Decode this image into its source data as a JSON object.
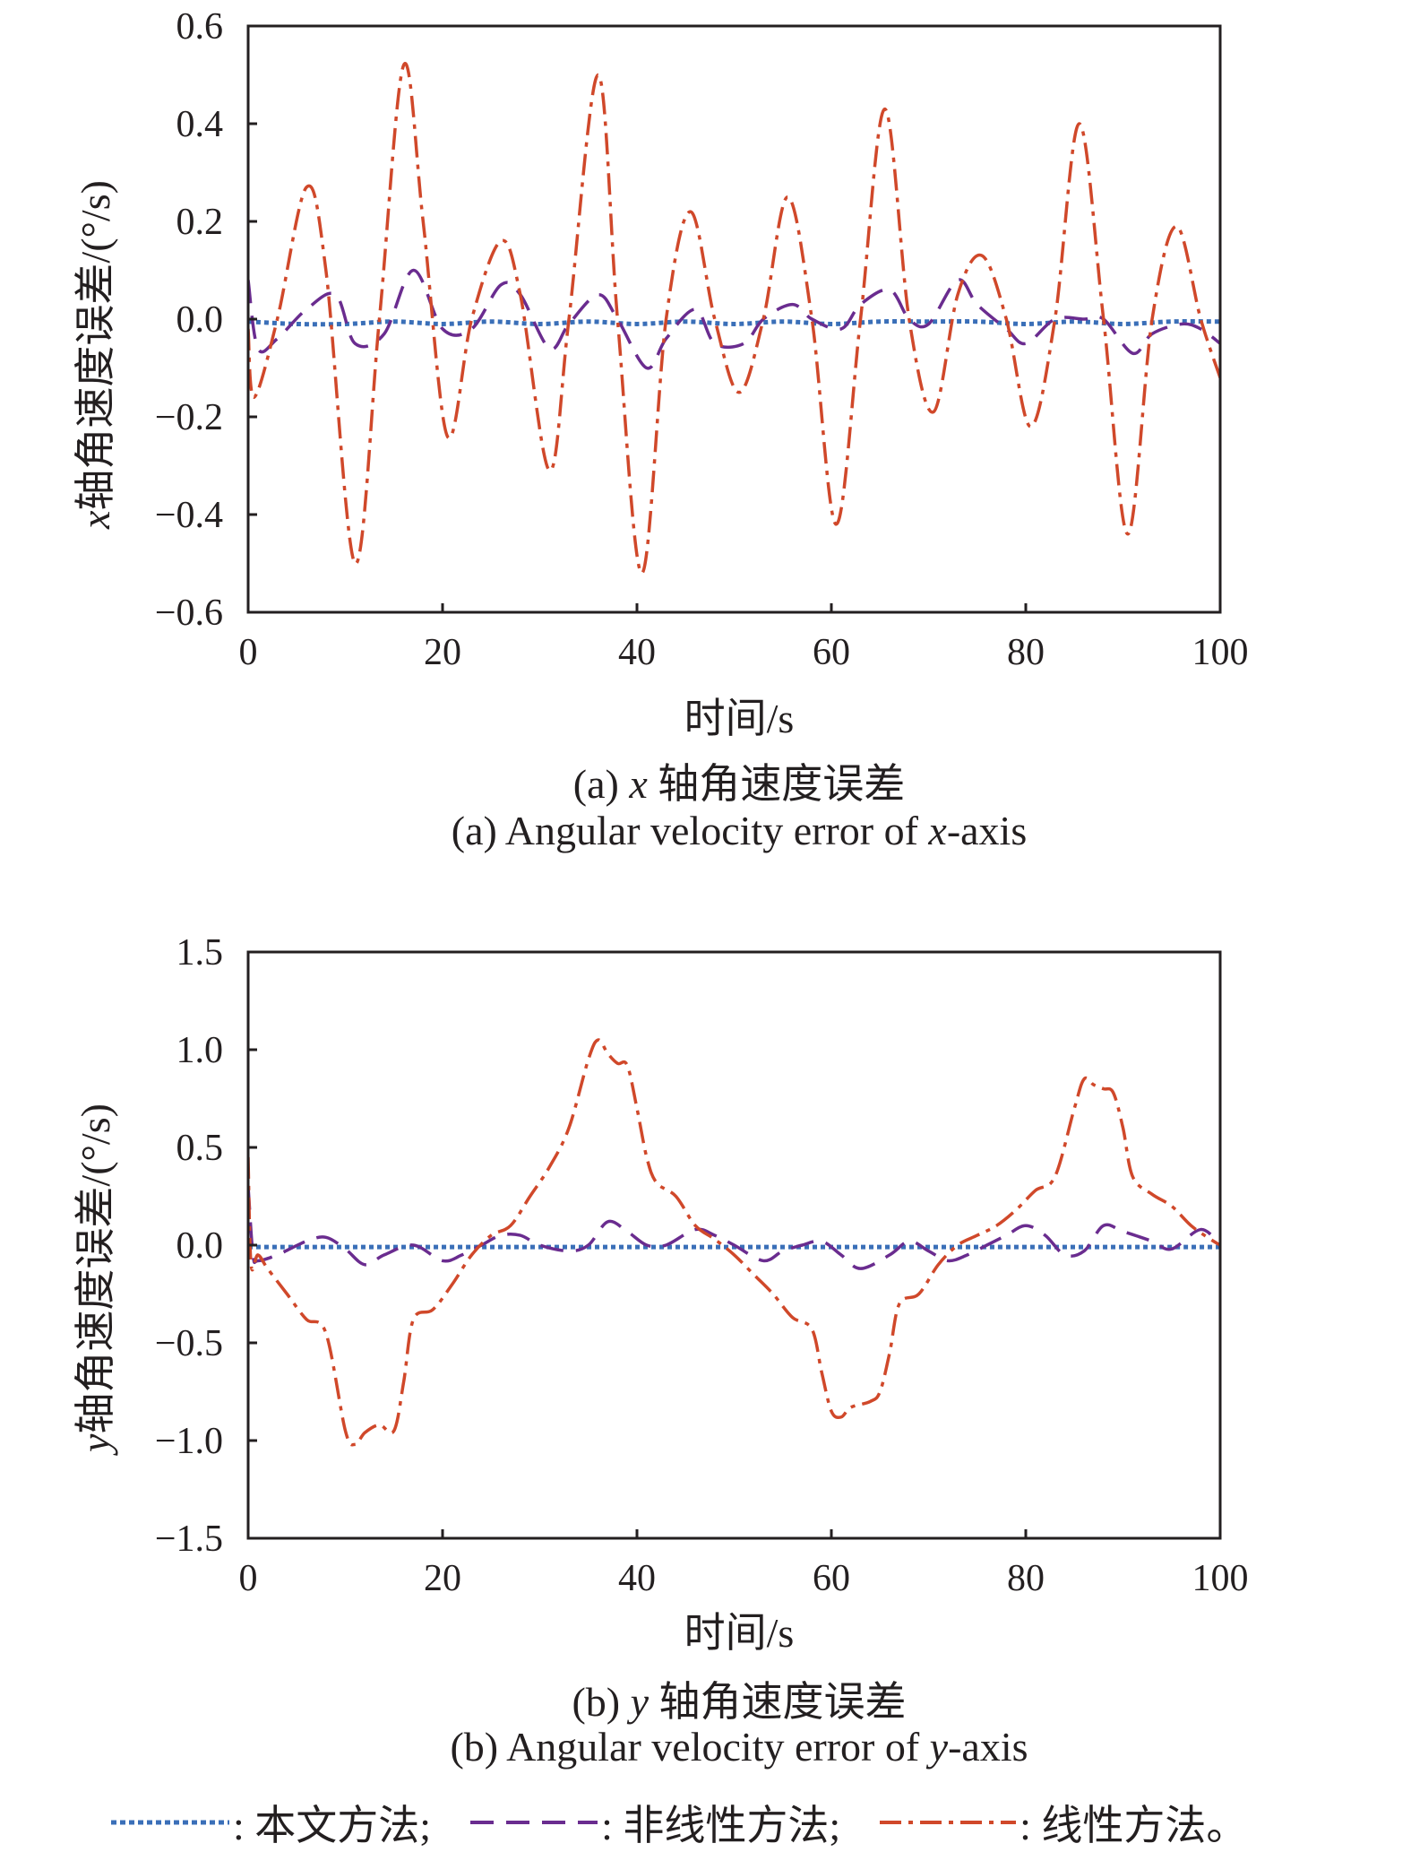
{
  "colors": {
    "proposed": "#3a6fb8",
    "nonlinear": "#6a2c8f",
    "linear": "#d0482a",
    "axis": "#231f20"
  },
  "legend": [
    {
      "key": "proposed",
      "label": ": 本文方法;"
    },
    {
      "key": "nonlinear",
      "label": ": 非线性方法;"
    },
    {
      "key": "linear",
      "label": ": 线性方法。"
    }
  ],
  "chart_data": [
    {
      "type": "line",
      "xlabel": "时间/s",
      "ylabel_var": "x",
      "ylabel": "轴角速度误差/(°/s)",
      "caption_cn_prefix": "(a) ",
      "caption_cn_var": "x",
      "caption_cn": " 轴角速度误差",
      "caption_en_prefix": "(a) Angular velocity error of ",
      "caption_en_var": "x",
      "caption_en_suffix": "-axis",
      "xlim": [
        0,
        100
      ],
      "ylim": [
        -0.6,
        0.6
      ],
      "xticks": [
        0,
        20,
        40,
        60,
        80,
        100
      ],
      "yticks": [
        -0.6,
        -0.4,
        -0.2,
        0.0,
        0.2,
        0.4,
        0.6
      ],
      "ytick_labels": [
        "−0.6",
        "−0.4",
        "−0.2",
        "0.0",
        "0.2",
        "0.4",
        "0.6"
      ],
      "series": [
        {
          "name": "本文方法",
          "key": "proposed",
          "x": [
            0,
            5,
            10,
            15,
            20,
            25,
            30,
            35,
            40,
            45,
            50,
            55,
            60,
            65,
            70,
            75,
            80,
            85,
            90,
            95,
            100
          ],
          "y": [
            -0.005,
            -0.01,
            -0.01,
            -0.005,
            -0.01,
            -0.005,
            -0.01,
            -0.005,
            -0.01,
            -0.005,
            -0.01,
            -0.005,
            -0.01,
            -0.005,
            -0.005,
            -0.005,
            -0.01,
            -0.005,
            -0.01,
            -0.005,
            -0.005
          ]
        },
        {
          "name": "非线性方法",
          "key": "nonlinear",
          "x": [
            0,
            1,
            3,
            6,
            9,
            11,
            14,
            17,
            20,
            23,
            26,
            28,
            31,
            33,
            36,
            38,
            41,
            43,
            46,
            48,
            51,
            53,
            56,
            58,
            61,
            63,
            66,
            68,
            70,
            73,
            75,
            78,
            80,
            83,
            86,
            88,
            91,
            93,
            96,
            98,
            100
          ],
          "y": [
            0.08,
            -0.06,
            -0.04,
            0.02,
            0.05,
            -0.05,
            -0.03,
            0.1,
            -0.02,
            -0.02,
            0.07,
            0.05,
            -0.06,
            -0.01,
            0.05,
            0.0,
            -0.1,
            -0.04,
            0.02,
            -0.05,
            -0.05,
            0.0,
            0.03,
            0.0,
            -0.02,
            0.03,
            0.06,
            0.0,
            -0.01,
            0.08,
            0.03,
            -0.02,
            -0.05,
            0.0,
            0.0,
            0.0,
            -0.07,
            -0.03,
            -0.01,
            -0.02,
            -0.05
          ]
        },
        {
          "name": "线性方法",
          "key": "linear",
          "x": [
            0,
            0.6,
            3,
            6,
            8,
            11,
            13.5,
            16,
            18,
            20.5,
            23,
            26,
            28,
            31,
            33,
            36,
            38,
            40.5,
            43,
            45.5,
            48,
            50.5,
            53,
            55.5,
            58,
            60.5,
            63,
            65.5,
            68,
            70.5,
            73,
            75.5,
            78,
            80.5,
            83,
            85.5,
            88,
            90.5,
            93,
            95.5,
            98,
            100
          ],
          "y": [
            -0.02,
            -0.16,
            0.0,
            0.27,
            0.1,
            -0.5,
            0.0,
            0.52,
            0.2,
            -0.24,
            0.0,
            0.16,
            0.05,
            -0.31,
            0.0,
            0.5,
            0.0,
            -0.52,
            0.0,
            0.22,
            0.0,
            -0.15,
            0.0,
            0.25,
            0.0,
            -0.42,
            0.0,
            0.43,
            0.0,
            -0.19,
            0.05,
            0.13,
            0.0,
            -0.22,
            0.0,
            0.4,
            0.0,
            -0.44,
            0.0,
            0.19,
            0.0,
            -0.12
          ]
        }
      ]
    },
    {
      "type": "line",
      "xlabel": "时间/s",
      "ylabel_var": "y",
      "ylabel": "轴角速度误差/(°/s)",
      "caption_cn_prefix": "(b) ",
      "caption_cn_var": "y",
      "caption_cn": " 轴角速度误差",
      "caption_en_prefix": "(b) Angular velocity error of ",
      "caption_en_var": "y",
      "caption_en_suffix": "-axis",
      "xlim": [
        0,
        100
      ],
      "ylim": [
        -1.5,
        1.5
      ],
      "xticks": [
        0,
        20,
        40,
        60,
        80,
        100
      ],
      "yticks": [
        -1.5,
        -1.0,
        -0.5,
        0.0,
        0.5,
        1.0,
        1.5
      ],
      "ytick_labels": [
        "−1.5",
        "−1.0",
        "−0.5",
        "0.0",
        "0.5",
        "1.0",
        "1.5"
      ],
      "series": [
        {
          "name": "本文方法",
          "key": "proposed",
          "x": [
            0,
            25,
            50,
            75,
            100
          ],
          "y": [
            -0.01,
            -0.01,
            -0.01,
            -0.01,
            -0.01
          ]
        },
        {
          "name": "非线性方法",
          "key": "nonlinear",
          "x": [
            0,
            0.5,
            1,
            3,
            6,
            8,
            10,
            12,
            14,
            17,
            20,
            22,
            24,
            26,
            28,
            30,
            33,
            35,
            37,
            39,
            41,
            43,
            46,
            48,
            50,
            53,
            55,
            57,
            59,
            61,
            63,
            66,
            68,
            70,
            72,
            74,
            76,
            78,
            80,
            82,
            84,
            86,
            88,
            90,
            93,
            95,
            98,
            100
          ],
          "y": [
            0.3,
            -0.05,
            -0.08,
            -0.05,
            0.02,
            0.04,
            -0.02,
            -0.1,
            -0.05,
            0.0,
            -0.08,
            -0.05,
            0.0,
            0.05,
            0.05,
            0.0,
            -0.03,
            0.0,
            0.12,
            0.07,
            0.0,
            0.0,
            0.08,
            0.05,
            0.0,
            -0.08,
            -0.03,
            0.0,
            0.02,
            -0.05,
            -0.12,
            -0.05,
            0.02,
            -0.03,
            -0.08,
            -0.05,
            0.0,
            0.05,
            0.1,
            0.05,
            -0.05,
            -0.03,
            0.1,
            0.07,
            0.02,
            -0.02,
            0.08,
            0.0
          ]
        },
        {
          "name": "线性方法",
          "key": "linear",
          "x": [
            0,
            0.3,
            1,
            2,
            4,
            6,
            8,
            10,
            11,
            12,
            13.5,
            15,
            16,
            17,
            19,
            21,
            23,
            25,
            27,
            29,
            31,
            33,
            35,
            36,
            37,
            38,
            39,
            40,
            41,
            42,
            44,
            46,
            48,
            50,
            52,
            54,
            56,
            58,
            59,
            60,
            61,
            62,
            64,
            65,
            66,
            67,
            69,
            71,
            73,
            75,
            77,
            79,
            81,
            83,
            85,
            86,
            87,
            88,
            89,
            90,
            91,
            93,
            95,
            97,
            99,
            100
          ],
          "y": [
            0.45,
            -0.1,
            -0.05,
            -0.12,
            -0.25,
            -0.38,
            -0.45,
            -0.95,
            -1.02,
            -0.96,
            -0.92,
            -0.95,
            -0.7,
            -0.38,
            -0.33,
            -0.2,
            -0.05,
            0.05,
            0.1,
            0.25,
            0.4,
            0.6,
            0.95,
            1.05,
            0.98,
            0.93,
            0.92,
            0.7,
            0.45,
            0.32,
            0.25,
            0.1,
            0.03,
            -0.05,
            -0.15,
            -0.25,
            -0.37,
            -0.43,
            -0.65,
            -0.85,
            -0.88,
            -0.83,
            -0.8,
            -0.75,
            -0.55,
            -0.3,
            -0.25,
            -0.1,
            0.0,
            0.05,
            0.1,
            0.18,
            0.28,
            0.35,
            0.7,
            0.85,
            0.82,
            0.8,
            0.78,
            0.6,
            0.35,
            0.26,
            0.2,
            0.1,
            0.03,
            0.0
          ]
        }
      ]
    }
  ]
}
